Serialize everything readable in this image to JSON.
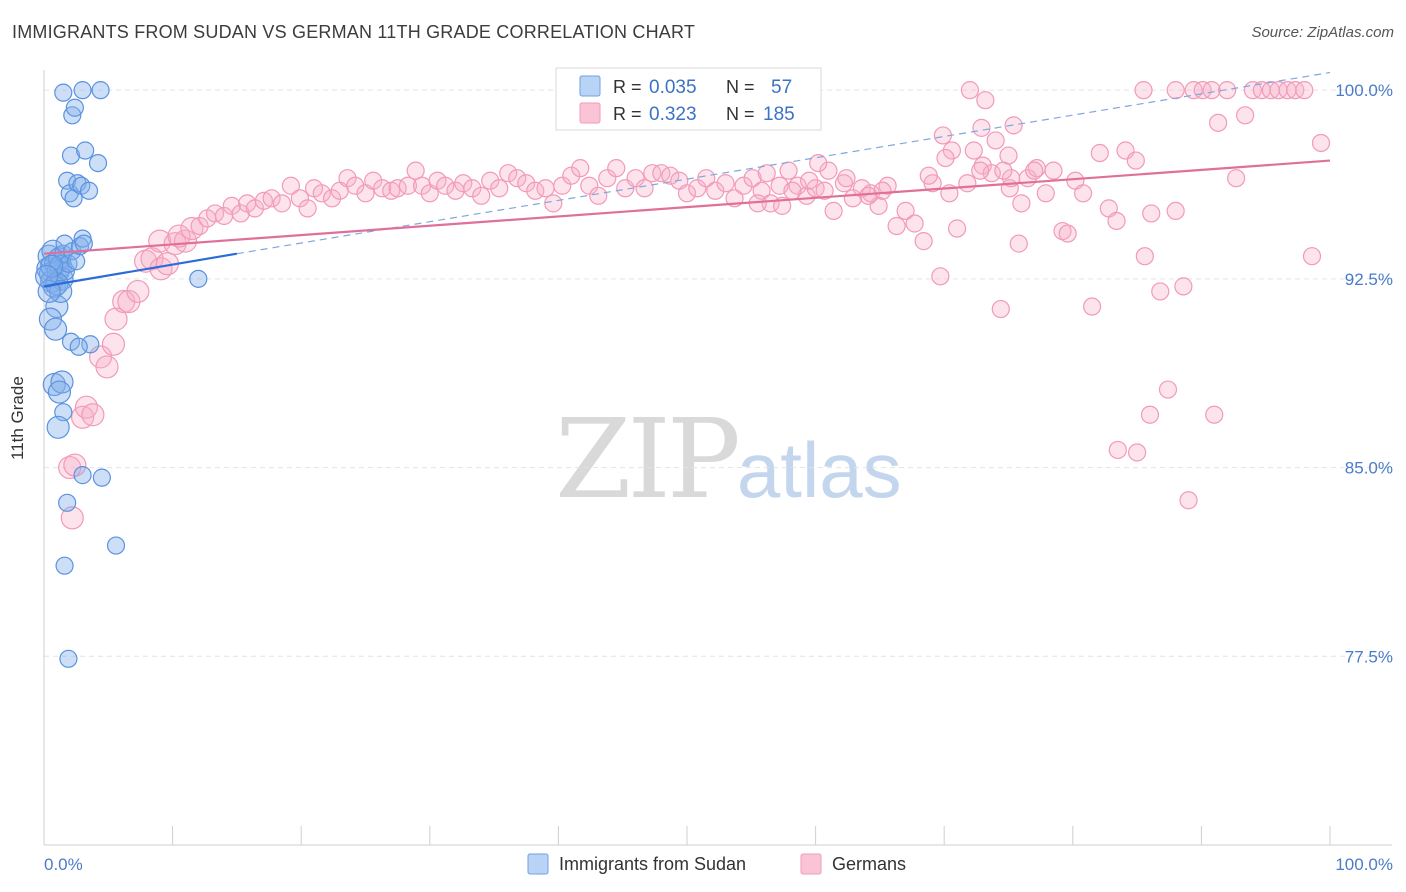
{
  "title": "IMMIGRANTS FROM SUDAN VS GERMAN 11TH GRADE CORRELATION CHART",
  "source": "Source: ZipAtlas.com",
  "watermark": {
    "a": "ZIP",
    "b": "atlas"
  },
  "chart_data": {
    "type": "scatter",
    "title": "IMMIGRANTS FROM SUDAN VS GERMAN 11TH GRADE CORRELATION CHART",
    "xlabel": "",
    "ylabel": "11th Grade",
    "xlim": [
      0,
      100
    ],
    "ylim": [
      70,
      100.8
    ],
    "x_tick_labels": [
      "0.0%",
      "100.0%"
    ],
    "y_ticks": [
      77.5,
      85.0,
      92.5,
      100.0
    ],
    "y_tick_labels": [
      "77.5%",
      "85.0%",
      "92.5%",
      "100.0%"
    ],
    "grid": true,
    "legend_position": "top-center",
    "colors": {
      "sudan": "#6fa0e6",
      "germans": "#f29ab8",
      "sudan_line": "#2b6cd6",
      "germans_line": "#e0709a"
    },
    "stats": [
      {
        "r_label": "R =",
        "r": "0.035",
        "n_label": "N =",
        "n": "57"
      },
      {
        "r_label": "R =",
        "r": "0.323",
        "n_label": "N =",
        "n": "185"
      }
    ],
    "series": [
      {
        "name": "Immigrants from Sudan",
        "trend": {
          "x": [
            0,
            15
          ],
          "y": [
            92.2,
            93.5
          ],
          "dashed_to": [
            100,
            100.7
          ]
        },
        "points": [
          [
            0.3,
            92.9
          ],
          [
            0.4,
            93.4
          ],
          [
            0.5,
            92.7
          ],
          [
            0.6,
            92.4
          ],
          [
            0.7,
            93.6
          ],
          [
            0.8,
            92.2
          ],
          [
            0.9,
            93.1
          ],
          [
            1.0,
            91.4
          ],
          [
            1.1,
            92.8
          ],
          [
            1.2,
            93.3
          ],
          [
            1.3,
            93.0
          ],
          [
            1.4,
            92.5
          ],
          [
            1.5,
            93.5
          ],
          [
            1.6,
            93.9
          ],
          [
            1.7,
            92.8
          ],
          [
            1.8,
            96.4
          ],
          [
            2.0,
            95.9
          ],
          [
            2.1,
            97.4
          ],
          [
            2.2,
            99.0
          ],
          [
            2.4,
            99.3
          ],
          [
            1.9,
            93.1
          ],
          [
            2.2,
            93.6
          ],
          [
            2.5,
            93.2
          ],
          [
            2.3,
            95.7
          ],
          [
            2.6,
            96.3
          ],
          [
            2.8,
            93.8
          ],
          [
            2.9,
            96.2
          ],
          [
            3.0,
            94.1
          ],
          [
            3.1,
            93.9
          ],
          [
            3.2,
            97.6
          ],
          [
            3.5,
            96.0
          ],
          [
            4.2,
            97.1
          ],
          [
            3.0,
            100.0
          ],
          [
            4.4,
            100.0
          ],
          [
            1.5,
            99.9
          ],
          [
            0.5,
            90.9
          ],
          [
            0.9,
            90.5
          ],
          [
            2.1,
            90.0
          ],
          [
            0.8,
            88.3
          ],
          [
            1.4,
            88.4
          ],
          [
            1.2,
            88.0
          ],
          [
            1.5,
            87.2
          ],
          [
            1.1,
            86.6
          ],
          [
            3.0,
            84.7
          ],
          [
            4.5,
            84.6
          ],
          [
            1.8,
            83.6
          ],
          [
            5.6,
            81.9
          ],
          [
            1.6,
            81.1
          ],
          [
            1.9,
            77.4
          ],
          [
            12.0,
            92.5
          ],
          [
            1.0,
            92.3
          ],
          [
            0.6,
            93.0
          ],
          [
            3.6,
            89.9
          ],
          [
            1.3,
            92.0
          ],
          [
            0.4,
            92.0
          ],
          [
            2.7,
            89.8
          ],
          [
            0.2,
            92.6
          ]
        ]
      },
      {
        "name": "Germans",
        "trend": {
          "x": [
            0,
            100
          ],
          "y": [
            93.5,
            97.2
          ]
        },
        "points": [
          [
            2.2,
            83.0
          ],
          [
            2.0,
            85.0
          ],
          [
            2.4,
            85.1
          ],
          [
            3.0,
            87.0
          ],
          [
            3.3,
            87.4
          ],
          [
            3.8,
            87.1
          ],
          [
            4.4,
            89.4
          ],
          [
            4.9,
            89.0
          ],
          [
            5.4,
            89.9
          ],
          [
            5.6,
            90.9
          ],
          [
            6.2,
            91.6
          ],
          [
            6.6,
            91.6
          ],
          [
            7.3,
            92.0
          ],
          [
            7.9,
            93.2
          ],
          [
            8.4,
            93.3
          ],
          [
            9.1,
            92.9
          ],
          [
            9.6,
            93.1
          ],
          [
            9.0,
            94.0
          ],
          [
            10.2,
            93.9
          ],
          [
            11.0,
            94.0
          ],
          [
            10.5,
            94.2
          ],
          [
            11.5,
            94.5
          ],
          [
            12.1,
            94.6
          ],
          [
            12.7,
            94.9
          ],
          [
            13.3,
            95.1
          ],
          [
            14.0,
            95.0
          ],
          [
            14.6,
            95.4
          ],
          [
            15.3,
            95.1
          ],
          [
            15.8,
            95.5
          ],
          [
            16.4,
            95.3
          ],
          [
            17.1,
            95.6
          ],
          [
            17.7,
            95.7
          ],
          [
            18.5,
            95.5
          ],
          [
            19.2,
            96.2
          ],
          [
            19.9,
            95.7
          ],
          [
            20.5,
            95.3
          ],
          [
            21.0,
            96.1
          ],
          [
            21.6,
            95.9
          ],
          [
            22.4,
            95.7
          ],
          [
            23.0,
            96.0
          ],
          [
            23.6,
            96.5
          ],
          [
            24.2,
            96.2
          ],
          [
            25.0,
            95.9
          ],
          [
            25.6,
            96.4
          ],
          [
            26.3,
            96.1
          ],
          [
            27.0,
            96.0
          ],
          [
            27.5,
            96.1
          ],
          [
            28.3,
            96.2
          ],
          [
            28.9,
            96.8
          ],
          [
            29.4,
            96.2
          ],
          [
            30.0,
            95.9
          ],
          [
            30.6,
            96.4
          ],
          [
            31.2,
            96.2
          ],
          [
            32.0,
            96.0
          ],
          [
            32.6,
            96.3
          ],
          [
            33.3,
            96.1
          ],
          [
            34.0,
            95.8
          ],
          [
            34.7,
            96.4
          ],
          [
            35.4,
            96.1
          ],
          [
            36.1,
            96.7
          ],
          [
            36.8,
            96.5
          ],
          [
            37.5,
            96.3
          ],
          [
            38.2,
            96.0
          ],
          [
            39.0,
            96.1
          ],
          [
            39.6,
            95.5
          ],
          [
            40.3,
            96.2
          ],
          [
            41.0,
            96.6
          ],
          [
            41.7,
            96.9
          ],
          [
            42.4,
            96.2
          ],
          [
            43.1,
            95.8
          ],
          [
            43.8,
            96.5
          ],
          [
            44.5,
            96.9
          ],
          [
            45.2,
            96.1
          ],
          [
            46.0,
            96.5
          ],
          [
            46.7,
            96.1
          ],
          [
            47.3,
            96.7
          ],
          [
            48.0,
            96.7
          ],
          [
            48.7,
            96.6
          ],
          [
            49.4,
            96.4
          ],
          [
            50.0,
            95.9
          ],
          [
            50.8,
            96.1
          ],
          [
            51.5,
            96.5
          ],
          [
            52.2,
            96.0
          ],
          [
            53.0,
            96.3
          ],
          [
            53.7,
            95.7
          ],
          [
            54.4,
            96.2
          ],
          [
            55.1,
            96.5
          ],
          [
            55.8,
            96.0
          ],
          [
            56.5,
            95.5
          ],
          [
            57.2,
            96.2
          ],
          [
            57.9,
            96.8
          ],
          [
            58.6,
            96.2
          ],
          [
            59.3,
            95.8
          ],
          [
            60.0,
            96.1
          ],
          [
            60.7,
            96.0
          ],
          [
            61.4,
            95.2
          ],
          [
            62.2,
            96.3
          ],
          [
            62.9,
            95.7
          ],
          [
            63.6,
            96.1
          ],
          [
            64.3,
            95.9
          ],
          [
            64.9,
            95.4
          ],
          [
            65.6,
            96.2
          ],
          [
            66.3,
            94.6
          ],
          [
            67.0,
            95.2
          ],
          [
            67.7,
            94.7
          ],
          [
            68.4,
            94.0
          ],
          [
            69.1,
            96.3
          ],
          [
            69.7,
            92.6
          ],
          [
            70.4,
            95.9
          ],
          [
            71.0,
            94.5
          ],
          [
            71.8,
            96.3
          ],
          [
            72.3,
            97.6
          ],
          [
            73.0,
            97.0
          ],
          [
            73.7,
            96.7
          ],
          [
            74.4,
            91.3
          ],
          [
            75.1,
            96.1
          ],
          [
            75.8,
            93.9
          ],
          [
            76.5,
            96.5
          ],
          [
            77.2,
            96.9
          ],
          [
            77.9,
            95.9
          ],
          [
            78.5,
            96.8
          ],
          [
            79.2,
            94.4
          ],
          [
            79.6,
            94.3
          ],
          [
            80.2,
            96.4
          ],
          [
            80.8,
            95.9
          ],
          [
            81.5,
            91.4
          ],
          [
            82.1,
            97.5
          ],
          [
            82.8,
            95.3
          ],
          [
            83.4,
            94.8
          ],
          [
            84.1,
            97.6
          ],
          [
            84.9,
            97.2
          ],
          [
            85.6,
            93.4
          ],
          [
            86.1,
            95.1
          ],
          [
            86.8,
            92.0
          ],
          [
            87.4,
            88.1
          ],
          [
            88.0,
            95.2
          ],
          [
            88.6,
            92.2
          ],
          [
            89.4,
            100.0
          ],
          [
            90.1,
            100.0
          ],
          [
            90.8,
            100.0
          ],
          [
            91.3,
            98.7
          ],
          [
            92.0,
            100.0
          ],
          [
            92.7,
            96.5
          ],
          [
            93.4,
            99.0
          ],
          [
            94.0,
            100.0
          ],
          [
            94.7,
            100.0
          ],
          [
            95.4,
            100.0
          ],
          [
            96.0,
            100.0
          ],
          [
            96.7,
            100.0
          ],
          [
            97.3,
            100.0
          ],
          [
            98.0,
            100.0
          ],
          [
            98.6,
            93.4
          ],
          [
            99.3,
            97.9
          ],
          [
            85.5,
            100.0
          ],
          [
            88.0,
            100.0
          ],
          [
            91.0,
            87.1
          ],
          [
            89.0,
            83.7
          ],
          [
            85.0,
            85.6
          ],
          [
            83.5,
            85.7
          ],
          [
            86.0,
            87.1
          ],
          [
            70.6,
            97.6
          ],
          [
            69.9,
            98.2
          ],
          [
            75.4,
            98.6
          ],
          [
            72.0,
            100.0
          ],
          [
            73.2,
            99.6
          ],
          [
            72.9,
            98.5
          ],
          [
            74.0,
            98.0
          ],
          [
            68.8,
            96.6
          ],
          [
            70.1,
            97.3
          ],
          [
            72.8,
            96.8
          ],
          [
            75.2,
            96.5
          ],
          [
            77.0,
            96.8
          ],
          [
            76.0,
            95.5
          ],
          [
            74.6,
            96.8
          ],
          [
            75.0,
            97.4
          ],
          [
            65.2,
            96.0
          ],
          [
            64.1,
            95.8
          ],
          [
            62.4,
            96.5
          ],
          [
            61.0,
            96.8
          ],
          [
            60.2,
            97.1
          ],
          [
            59.5,
            96.4
          ],
          [
            58.2,
            96.0
          ],
          [
            57.4,
            95.4
          ],
          [
            56.2,
            96.7
          ],
          [
            55.5,
            95.5
          ]
        ]
      }
    ]
  },
  "legend": [
    {
      "label": "Immigrants from Sudan"
    },
    {
      "label": "Germans"
    }
  ]
}
